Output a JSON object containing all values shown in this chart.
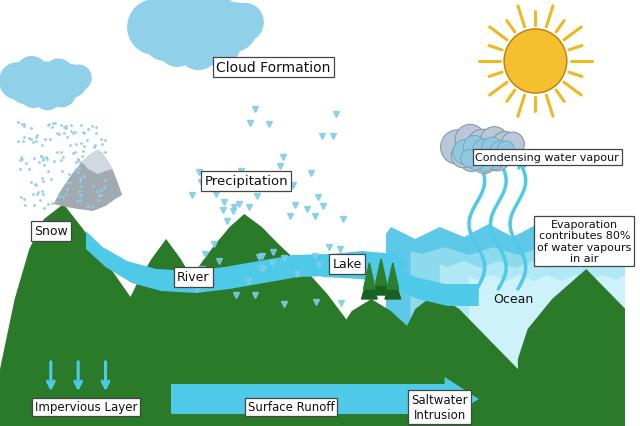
{
  "bg_color": "#ffffff",
  "mountain_color": "#2a7a2a",
  "snow_color": "#a0aab0",
  "water_color": "#4ec9e8",
  "ocean_light1": "#7dd8ee",
  "ocean_light2": "#a8e4f5",
  "ocean_light3": "#c8f0fa",
  "cloud_blue": "#90d0e8",
  "cloud_speckle": "#5bb8d8",
  "grey_cloud_body": "#c0ccd8",
  "grey_cloud_blue": "#88c8e0",
  "sun_color": "#f5c030",
  "sun_ray": "#f0b820",
  "rain_drop": "#7ecce8",
  "snow_dot": "#90d0e8",
  "evap_color": "#4ec9e8",
  "arrow_color": "#4ec9e8",
  "text_color": "#111111",
  "labels": {
    "cloud_formation": "Cloud Formation",
    "precipitation": "Precipitation",
    "snow": "Snow",
    "river": "River",
    "lake": "Lake",
    "impervious_layer": "Impervious Layer",
    "surface_runoff": "Surface Runoff",
    "saltwater_intrusion": "Saltwater\nIntrusion",
    "ocean": "Ocean",
    "condensing": "Condensing water vapour",
    "evaporation": "Evaporation\ncontributes 80%\nof water vapours\nin air"
  }
}
